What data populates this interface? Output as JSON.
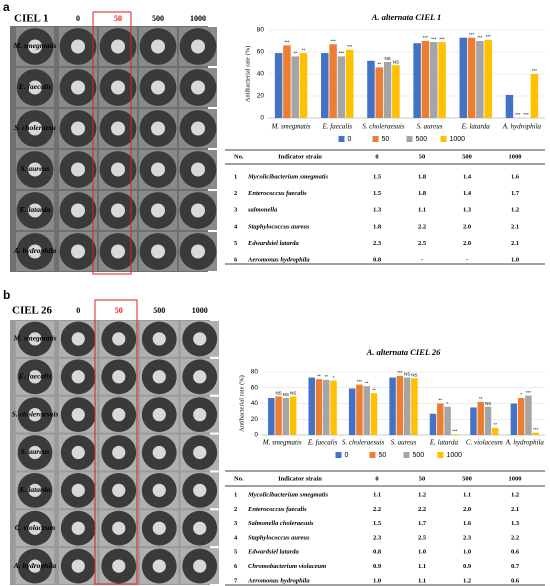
{
  "chart_data": [
    {
      "type": "bar",
      "title": "A. alternata CIEL 1",
      "y_label": "Antibacterial rate (%)",
      "categories": [
        "M. smegmatis",
        "E. faecalis",
        "S. choleraesuis",
        "S. aureus",
        "E. latarda",
        "A. hydrophila"
      ],
      "series": [
        {
          "name": "0",
          "color": "#4472c4",
          "values": [
            59,
            59,
            52,
            68,
            73,
            21
          ]
        },
        {
          "name": "50",
          "color": "#ed7d31",
          "values": [
            66,
            67,
            46,
            70,
            73,
            0
          ],
          "annotations": [
            "***",
            "***",
            "**",
            "***",
            "***",
            "***"
          ]
        },
        {
          "name": "500",
          "color": "#a5a5a5",
          "values": [
            56,
            56,
            51,
            69,
            70,
            0
          ],
          "annotations": [
            "**",
            "***",
            "NS",
            "***",
            "***",
            "***"
          ]
        },
        {
          "name": "1000",
          "color": "#ffc000",
          "values": [
            59,
            62,
            48,
            69,
            71,
            40
          ],
          "annotations": [
            "**",
            "***",
            "NS",
            "***",
            "***",
            "***"
          ]
        }
      ],
      "ylim": [
        0,
        80
      ],
      "yticks": [
        0,
        20,
        40,
        60,
        80
      ],
      "grid": true,
      "legend": "bottom"
    },
    {
      "type": "bar",
      "title": "A. alternata CIEL 26",
      "y_label": "Antibacterial rate (%)",
      "categories": [
        "M. smegmatis",
        "E. faecalis",
        "S. choleraesuis",
        "S. aureus",
        "E. latarda",
        "C. violaceum",
        "A. hydrophila"
      ],
      "series": [
        {
          "name": "0",
          "color": "#4472c4",
          "values": [
            47,
            73,
            59,
            73,
            27,
            35,
            40
          ]
        },
        {
          "name": "50",
          "color": "#ed7d31",
          "values": [
            49,
            71,
            64,
            75,
            40,
            42,
            47
          ],
          "annotations": [
            "NS",
            "**",
            "***",
            "***",
            "**",
            "**",
            "*"
          ]
        },
        {
          "name": "500",
          "color": "#a5a5a5",
          "values": [
            47,
            70,
            62,
            73,
            36,
            36,
            50
          ],
          "annotations": [
            "NS",
            "**",
            "**",
            "NS",
            "*",
            "NS",
            "***"
          ]
        },
        {
          "name": "1000",
          "color": "#ffc000",
          "values": [
            49,
            69,
            53,
            72,
            1,
            9,
            3
          ],
          "annotations": [
            "NS",
            "*",
            "**",
            "NS",
            "***",
            "**",
            "***"
          ]
        }
      ],
      "ylim": [
        0,
        80
      ],
      "yticks": [
        0,
        20,
        40,
        60,
        80
      ],
      "grid": true,
      "legend": "bottom"
    }
  ],
  "panels": [
    {
      "label": "a",
      "photo": {
        "title": "CIEL 1",
        "columns": [
          "0",
          "50",
          "500",
          "1000"
        ],
        "rows": [
          "M. smegmatis",
          "E. faecalis",
          "S. choleraesu",
          "S. aureus",
          "E. latarda",
          "A. hydrophila"
        ]
      },
      "table": {
        "header": [
          "No.",
          "Indicator strain",
          "0",
          "50",
          "500",
          "1000"
        ],
        "rows": [
          [
            "1",
            "Mycolicibacterium smegmatis",
            "1.5",
            "1.8",
            "1.4",
            "1.6"
          ],
          [
            "2",
            "Enterococcus faecalis",
            "1.5",
            "1.8",
            "1.4",
            "1.7"
          ],
          [
            "3",
            "salmonella",
            "1.3",
            "1.1",
            "1.3",
            "1.2"
          ],
          [
            "4",
            "Staphylococcus aureus",
            "1.8",
            "2.2",
            "2.0",
            "2.1"
          ],
          [
            "5",
            "Edwardsiel latarda",
            "2.3",
            "2.5",
            "2.0",
            "2.1"
          ],
          [
            "6",
            "Aeromonas hydrophila",
            "0.8",
            "-",
            "-",
            "1.0"
          ]
        ]
      }
    },
    {
      "label": "b",
      "photo": {
        "title": "CIEL 26",
        "columns": [
          "0",
          "50",
          "500",
          "1000"
        ],
        "rows": [
          "M. smegmatis",
          "E. faecalis",
          "S. choleraesuis",
          "S. aureus",
          "E. latarda",
          "C. violaceum",
          "A. hydrophila"
        ]
      },
      "table": {
        "header": [
          "No.",
          "Indicator strain",
          "0",
          "50",
          "500",
          "1000"
        ],
        "rows": [
          [
            "1",
            "Mycolicibacterium smegmatis",
            "1.1",
            "1.2",
            "1.1",
            "1.2"
          ],
          [
            "2",
            "Enterococcus faecalis",
            "2.2",
            "2.2",
            "2.0",
            "2.1"
          ],
          [
            "3",
            "Salmonella choleraesuis",
            "1.5",
            "1.7",
            "1.6",
            "1.3"
          ],
          [
            "4",
            "Staphylococcus aureus",
            "2.3",
            "2.5",
            "2.3",
            "2.2"
          ],
          [
            "5",
            "Edwardsiel latarda",
            "0.8",
            "1.0",
            "1.0",
            "0.6"
          ],
          [
            "6",
            "Chromobacterium violaceum",
            "0.9",
            "1.1",
            "0.9",
            "0.7"
          ],
          [
            "7",
            "Aeromonas hydrophila",
            "1.0",
            "1.1",
            "1.2",
            "0.6"
          ]
        ]
      }
    }
  ]
}
